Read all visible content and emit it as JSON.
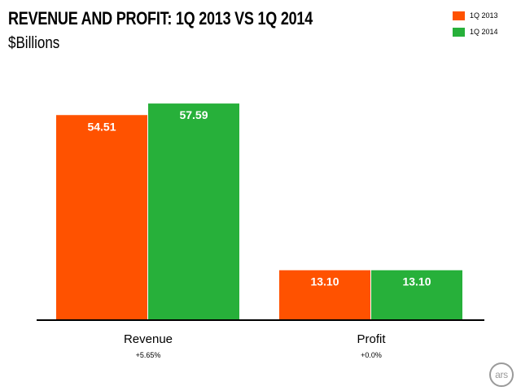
{
  "colors": {
    "series_2013": "#ff5200",
    "series_2014": "#27b03a",
    "axis": "#000000",
    "bar_label": "#ffffff"
  },
  "logo": {
    "text": "ars",
    "icon": "ars-logo-icon"
  },
  "chart_data": {
    "type": "bar",
    "title": "REVENUE AND PROFIT: 1Q 2013 VS 1Q 2014",
    "subtitle": "$Billions",
    "categories": [
      "Revenue",
      "Profit"
    ],
    "category_notes": [
      "+5.65%",
      "+0.0%"
    ],
    "series": [
      {
        "name": "1Q 2013",
        "values": [
          54.51,
          13.1
        ],
        "labels": [
          "54.51",
          "13.10"
        ]
      },
      {
        "name": "1Q 2014",
        "values": [
          57.59,
          13.1
        ],
        "labels": [
          "57.59",
          "13.10"
        ]
      }
    ],
    "ylim": [
      0,
      60
    ],
    "grid": false,
    "legend": "top-right",
    "xlabel": "",
    "ylabel": ""
  }
}
